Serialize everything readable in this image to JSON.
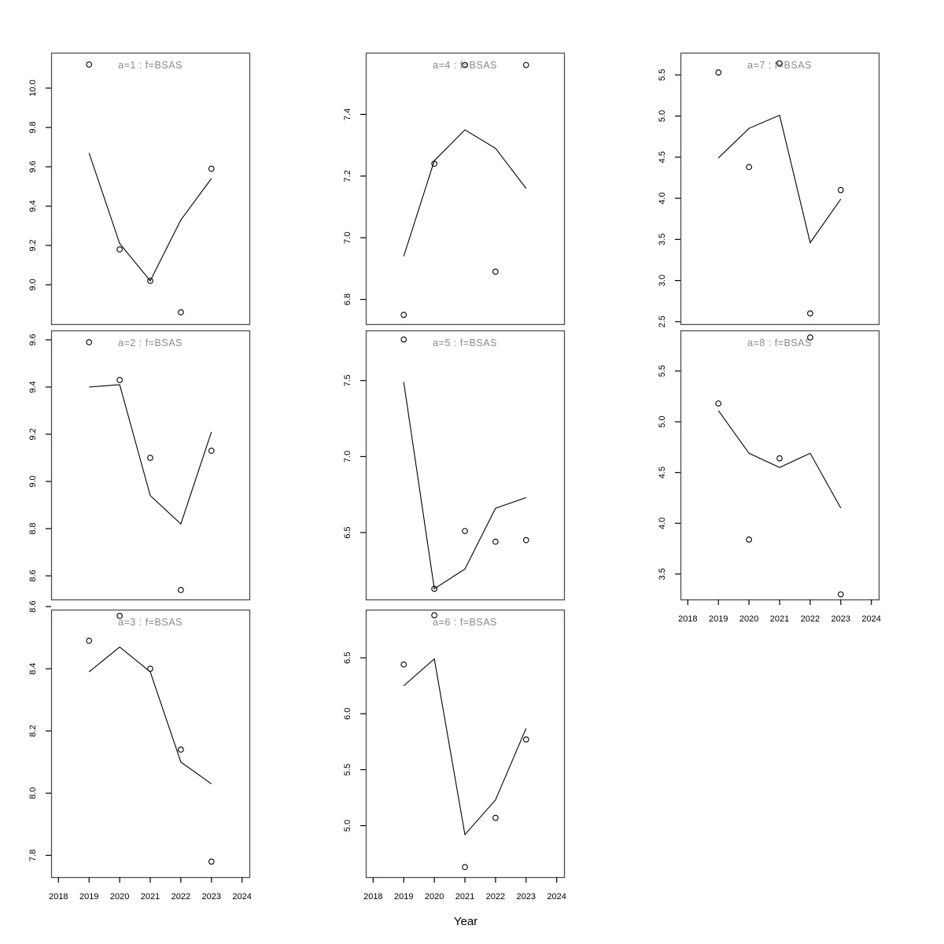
{
  "figure": {
    "xlabel": "Year",
    "background": "#ffffff",
    "colors": {
      "data": "#000000",
      "panel_title": "#8a8a8a",
      "panel_border": "#4d4d4d",
      "tick_text": "#000000"
    }
  },
  "chart_data": {
    "type": "scatter",
    "note": "8 lattice panels: open-circle observed points plus solid fitted line, shared Year x-axis",
    "x": [
      2019,
      2020,
      2021,
      2022,
      2023
    ],
    "x_ticks": [
      2018,
      2019,
      2020,
      2021,
      2022,
      2023,
      2024
    ],
    "xlim": [
      2017.76,
      2024.24
    ],
    "xlabel": "Year",
    "grid": false,
    "legend": false,
    "panels": [
      {
        "id": "a1",
        "label": "a=1 : f=BSAS",
        "row": 0,
        "col": 0,
        "ylim": [
          8.8,
          10.18
        ],
        "yticks": [
          9.0,
          9.2,
          9.4,
          9.6,
          9.8,
          10.0
        ],
        "points": [
          10.12,
          9.18,
          9.02,
          8.86,
          9.59
        ],
        "line": [
          9.67,
          9.21,
          9.02,
          9.33,
          9.54
        ],
        "x_axis": false
      },
      {
        "id": "a2",
        "label": "a=2 : f=BSAS",
        "row": 1,
        "col": 0,
        "ylim": [
          8.5,
          9.64
        ],
        "yticks": [
          8.6,
          8.8,
          9.0,
          9.2,
          9.4,
          9.6
        ],
        "points": [
          9.59,
          9.43,
          9.1,
          8.54,
          9.13
        ],
        "line": [
          9.4,
          9.41,
          8.94,
          8.82,
          9.21
        ],
        "x_axis": false
      },
      {
        "id": "a3",
        "label": "a=3 : f=BSAS",
        "row": 2,
        "col": 0,
        "ylim": [
          7.73,
          8.59
        ],
        "yticks": [
          7.8,
          8.0,
          8.2,
          8.4,
          8.6
        ],
        "points": [
          8.49,
          8.57,
          8.4,
          8.14,
          7.78
        ],
        "line": [
          8.39,
          8.47,
          8.39,
          8.1,
          8.03
        ],
        "x_axis": true
      },
      {
        "id": "a4",
        "label": "a=4 : f=BSAS",
        "row": 0,
        "col": 1,
        "ylim": [
          6.72,
          7.6
        ],
        "yticks": [
          6.8,
          7.0,
          7.2,
          7.4
        ],
        "points": [
          6.75,
          7.24,
          7.56,
          6.89,
          7.56
        ],
        "line": [
          6.94,
          7.25,
          7.35,
          7.29,
          7.16
        ],
        "x_axis": false
      },
      {
        "id": "a5",
        "label": "a=5 : f=BSAS",
        "row": 1,
        "col": 1,
        "ylim": [
          6.06,
          7.83
        ],
        "yticks": [
          6.5,
          7.0,
          7.5
        ],
        "points": [
          7.77,
          6.13,
          6.51,
          6.44,
          6.45
        ],
        "line": [
          7.49,
          6.13,
          6.26,
          6.66,
          6.73
        ],
        "x_axis": false
      },
      {
        "id": "a6",
        "label": "a=6 : f=BSAS",
        "row": 2,
        "col": 1,
        "ylim": [
          4.54,
          6.93
        ],
        "yticks": [
          5.0,
          5.5,
          6.0,
          6.5
        ],
        "points": [
          6.44,
          6.88,
          4.63,
          5.07,
          5.77
        ],
        "line": [
          6.25,
          6.49,
          4.92,
          5.23,
          5.87
        ],
        "x_axis": true
      },
      {
        "id": "a7",
        "label": "a=7 : f=BSAS",
        "row": 0,
        "col": 2,
        "ylim": [
          2.47,
          5.77
        ],
        "yticks": [
          2.5,
          3.0,
          3.5,
          4.0,
          4.5,
          5.0,
          5.5
        ],
        "points": [
          5.53,
          4.38,
          5.64,
          2.6,
          4.1
        ],
        "line": [
          4.49,
          4.85,
          5.01,
          3.46,
          3.99
        ],
        "x_axis": false
      },
      {
        "id": "a8",
        "label": "a=8 : f=BSAS",
        "row": 1,
        "col": 2,
        "ylim": [
          3.25,
          5.9
        ],
        "yticks": [
          3.5,
          4.0,
          4.5,
          5.0,
          5.5
        ],
        "points": [
          5.18,
          3.84,
          4.64,
          5.83,
          3.3
        ],
        "line": [
          5.11,
          4.69,
          4.55,
          4.69,
          4.15
        ],
        "x_axis": true
      }
    ]
  }
}
